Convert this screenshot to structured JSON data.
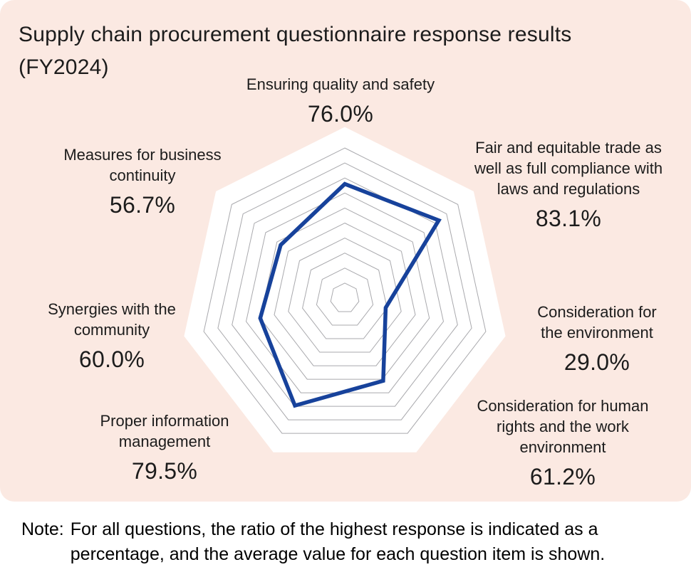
{
  "header": {
    "title_line1": "Supply chain procurement questionnaire response results",
    "title_line2": "(FY2024)"
  },
  "note": {
    "prefix": "Note:",
    "line1": "For all questions, the ratio of the highest response is indicated as a",
    "line2": "percentage, and the average value for each question item is shown."
  },
  "colors": {
    "page_bg": "#ffffff",
    "card_bg": "#fbe9e2",
    "line": "#17429b",
    "grid": "#a9a9ad",
    "plot_bg": "#ffffff",
    "text": "#1c1c1c"
  },
  "chart_data": {
    "type": "radar",
    "title": "Supply chain procurement questionnaire response results (FY2024)",
    "max": 100,
    "ring_count": 10,
    "start_angle_deg": -90,
    "direction": "clockwise",
    "grid": "on",
    "legend": "none",
    "categories": [
      "Ensuring quality and safety",
      "Fair and equitable trade as well as full compliance with laws and regulations",
      "Consideration for the environment",
      "Consideration for human rights and the work environment",
      "Proper information management",
      "Synergies with the community",
      "Measures for business continuity"
    ],
    "values": [
      76.0,
      83.1,
      29.0,
      61.2,
      79.5,
      60.0,
      56.7
    ],
    "value_labels": [
      "76.0%",
      "83.1%",
      "29.0%",
      "61.2%",
      "79.5%",
      "60.0%",
      "56.7%"
    ],
    "label_lines": [
      [
        "Ensuring quality and safety"
      ],
      [
        "Fair and equitable trade as",
        "well as full compliance with",
        "laws and regulations"
      ],
      [
        "Consideration for",
        "the environment"
      ],
      [
        "Consideration for human",
        "rights and the work",
        "environment"
      ],
      [
        "Proper information",
        "management"
      ],
      [
        "Synergies with the",
        "community"
      ],
      [
        "Measures for business",
        "continuity"
      ]
    ]
  }
}
